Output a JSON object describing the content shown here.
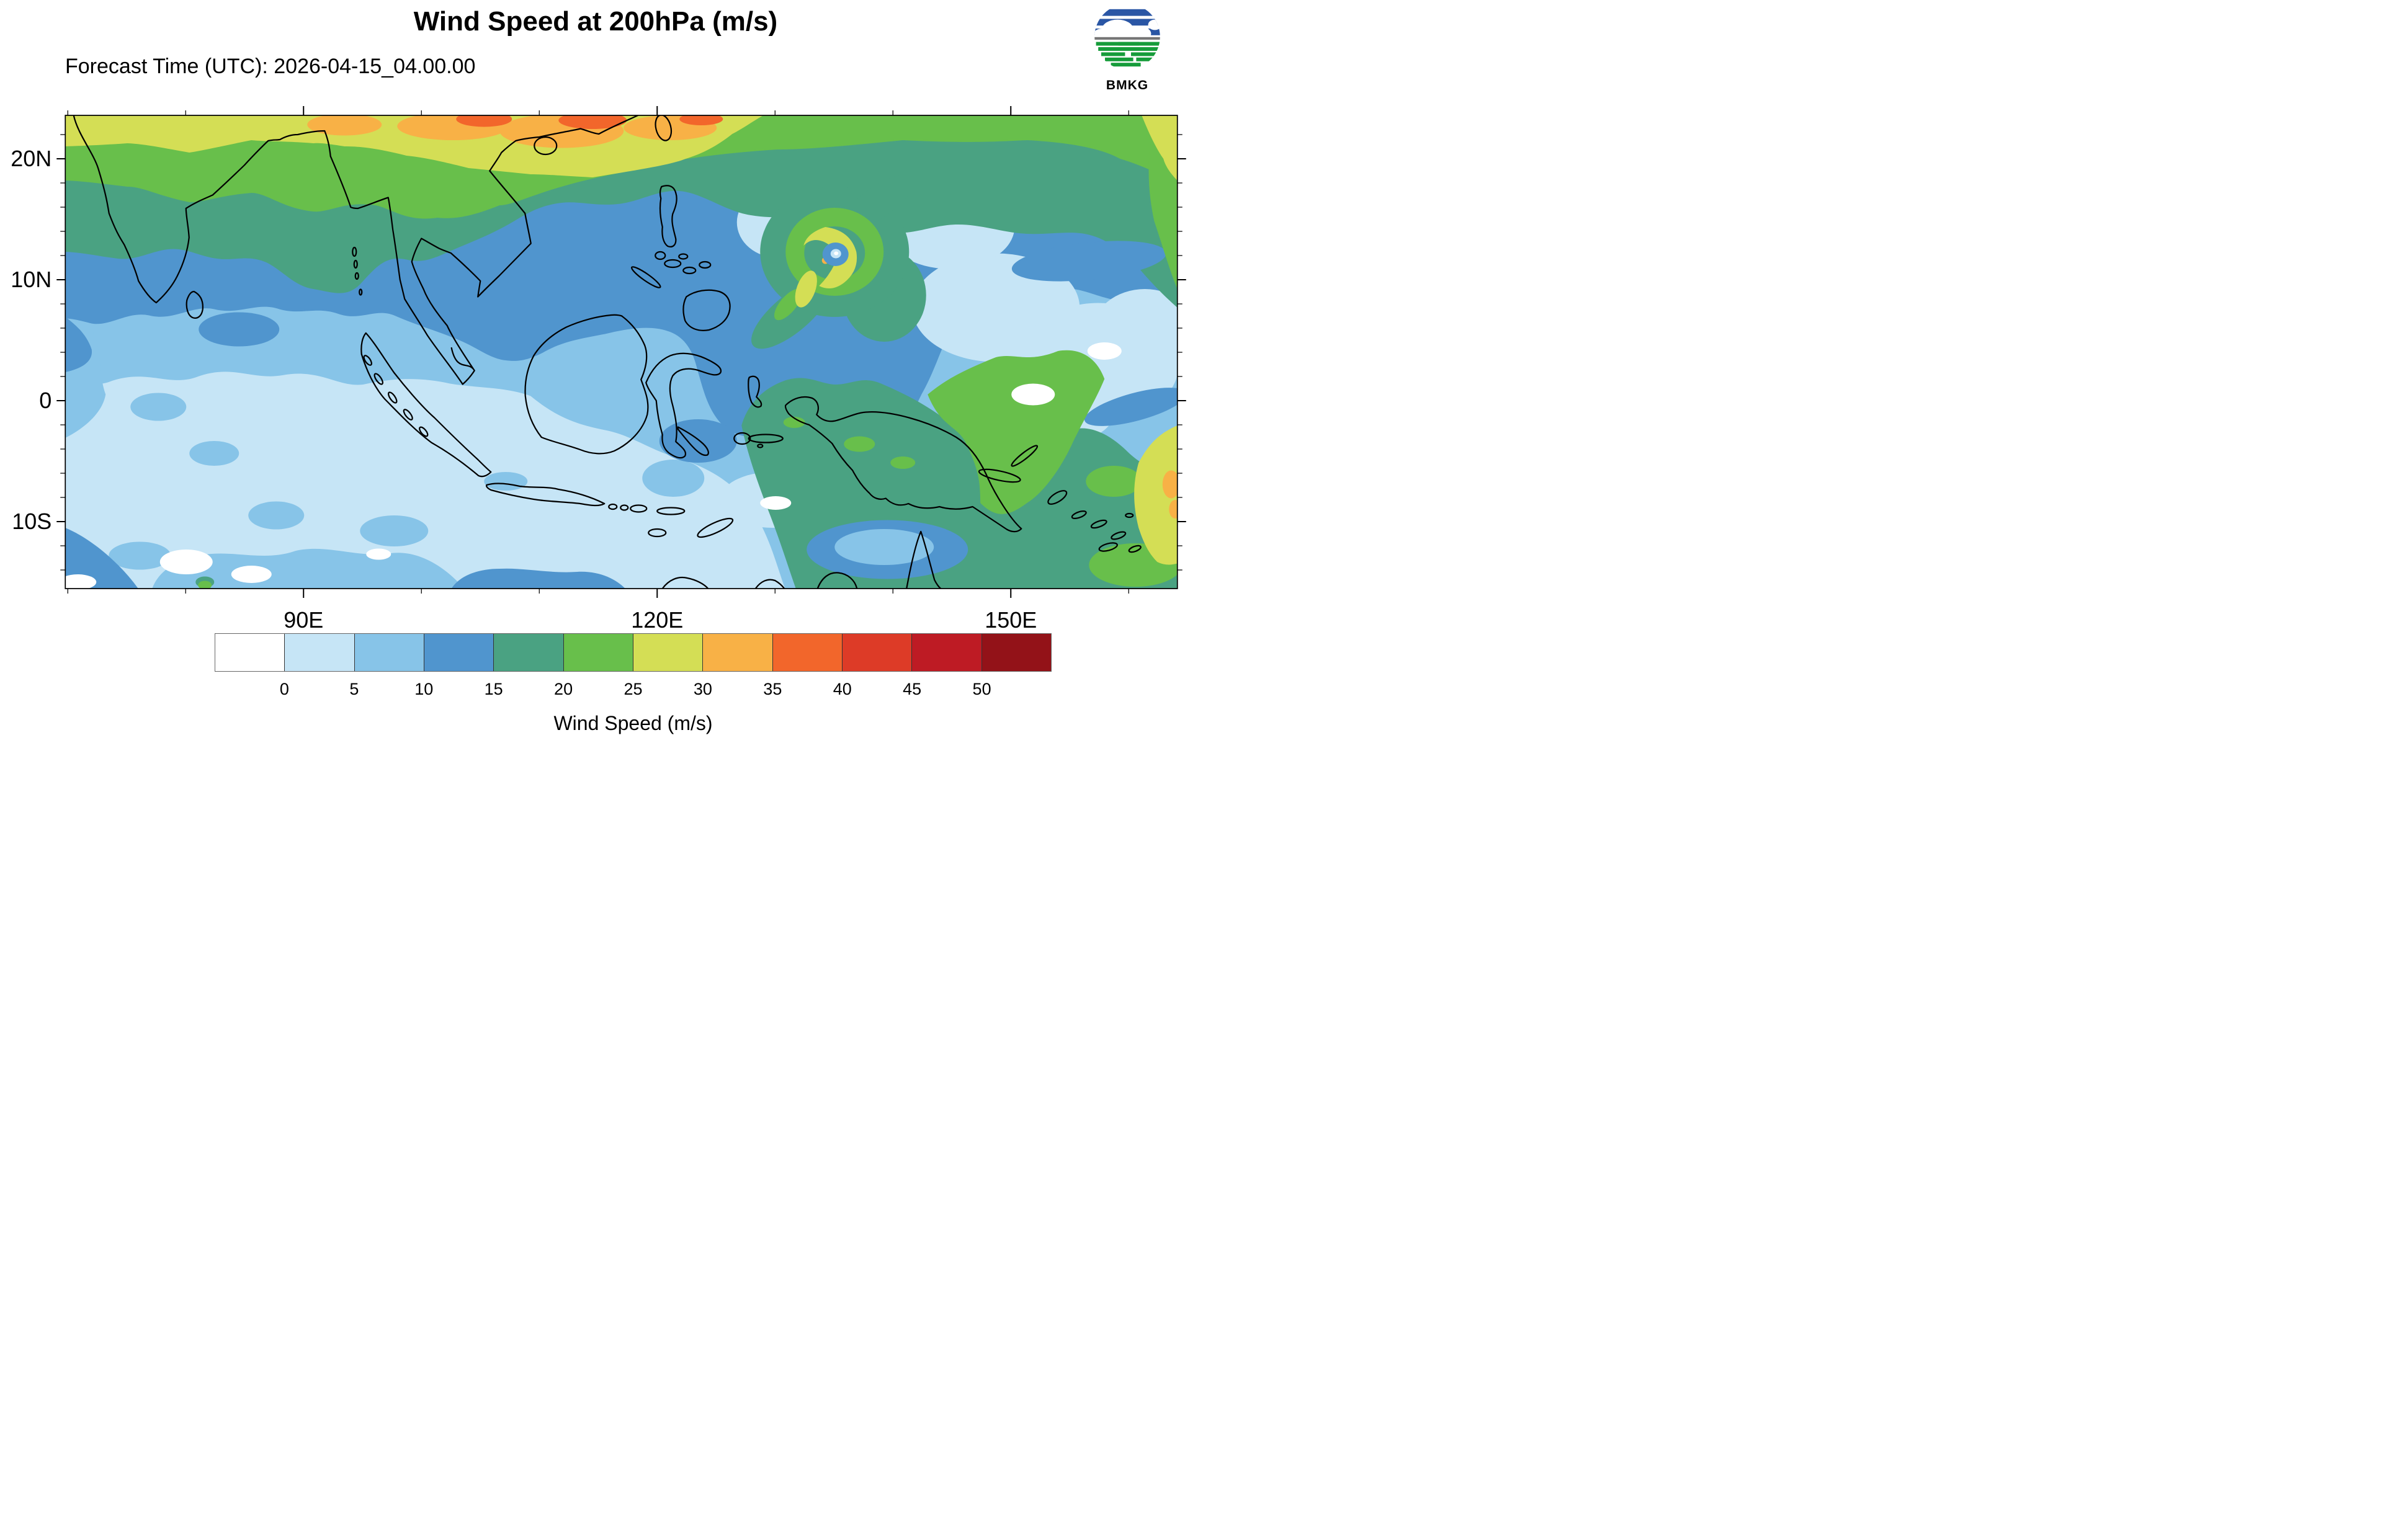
{
  "header": {
    "title": "Wind Speed at 200hPa (m/s)",
    "subtitle": "Forecast Time (UTC): 2026-04-15_04.00.00",
    "logo_text": "BMKG"
  },
  "axes": {
    "lat_ticks": [
      {
        "label": "20N",
        "value": 20
      },
      {
        "label": "10N",
        "value": 10
      },
      {
        "label": "0",
        "value": 0
      },
      {
        "label": "10S",
        "value": -10
      }
    ],
    "lon_ticks": [
      {
        "label": "90E",
        "value": 90
      },
      {
        "label": "120E",
        "value": 120
      },
      {
        "label": "150E",
        "value": 150
      }
    ]
  },
  "colorbar": {
    "label": "Wind Speed (m/s)",
    "tick_labels": [
      "0",
      "5",
      "10",
      "15",
      "20",
      "25",
      "30",
      "35",
      "40",
      "45",
      "50"
    ],
    "colors": [
      "#ffffff",
      "#c6e5f6",
      "#87c4e8",
      "#5095ce",
      "#4aa282",
      "#68bf4b",
      "#d4de55",
      "#f8b146",
      "#f2662b",
      "#dd3b27",
      "#be1b24",
      "#931218"
    ]
  },
  "chart_data": {
    "type": "heatmap",
    "title": "Wind Speed at 200hPa (m/s)",
    "forecast_time_utc": "2026-04-15_04.00.00",
    "variable": "wind speed at 200 hPa",
    "units": "m/s",
    "agency": "BMKG",
    "contour_levels_mps": [
      0,
      5,
      10,
      15,
      20,
      25,
      30,
      35,
      40,
      45,
      50
    ],
    "xlabel_ticks": [
      "90E",
      "120E",
      "150E"
    ],
    "ylabel_ticks": [
      "20N",
      "10N",
      "0",
      "10S"
    ],
    "legend_title": "Wind Speed (m/s)",
    "features": [
      {
        "name": "subtropical-jet",
        "desc": "Band of 20-35 m/s winds along the northern edge of the map (north of 20N) with 30-40 m/s maxima near the top center"
      },
      {
        "name": "tropical-cyclone",
        "desc": "Closed cyclonic wind maximum near 13N 133E: ring of 20-30 m/s (green/yellow) around a calm eye of <5 m/s"
      },
      {
        "name": "southeast-maximum",
        "desc": "15-25 m/s over New Guinea and the Solomon Sea, increasing to 25-35 m/s at the far eastern edge near 5S-10S"
      },
      {
        "name": "light-wind-region",
        "desc": "0-10 m/s over most of Indonesia, the Indian Ocean and the South China Sea"
      }
    ]
  }
}
